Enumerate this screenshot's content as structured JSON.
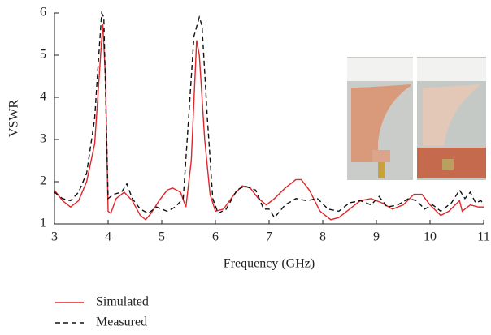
{
  "chart_data": {
    "type": "line",
    "xlabel": "Frequency (GHz)",
    "ylabel": "VSWR",
    "xlim": [
      3,
      11
    ],
    "xticks": [
      3,
      4,
      5,
      6,
      7,
      8,
      9,
      10,
      11
    ],
    "ylim": [
      1,
      6
    ],
    "yticks": [
      1,
      2,
      3,
      4,
      5,
      6
    ],
    "series": [
      {
        "name": "Simulated",
        "color": "#e0262b",
        "style": "solid",
        "x": [
          3.0,
          3.15,
          3.3,
          3.45,
          3.6,
          3.75,
          3.85,
          3.9,
          3.95,
          4.0,
          4.05,
          4.15,
          4.3,
          4.45,
          4.6,
          4.7,
          4.8,
          4.95,
          5.1,
          5.2,
          5.35,
          5.45,
          5.55,
          5.65,
          5.7,
          5.8,
          5.9,
          6.0,
          6.15,
          6.35,
          6.5,
          6.65,
          6.8,
          6.95,
          7.1,
          7.3,
          7.5,
          7.6,
          7.75,
          7.95,
          8.15,
          8.3,
          8.5,
          8.7,
          8.9,
          9.1,
          9.3,
          9.5,
          9.7,
          9.85,
          10.0,
          10.2,
          10.35,
          10.55,
          10.6,
          10.75,
          10.9,
          11.0
        ],
        "values": [
          1.8,
          1.55,
          1.4,
          1.55,
          2.0,
          2.9,
          4.8,
          5.75,
          4.5,
          1.3,
          1.25,
          1.6,
          1.75,
          1.55,
          1.2,
          1.1,
          1.25,
          1.55,
          1.8,
          1.85,
          1.75,
          1.4,
          2.5,
          5.35,
          5.0,
          3.0,
          1.7,
          1.3,
          1.35,
          1.7,
          1.9,
          1.85,
          1.6,
          1.45,
          1.6,
          1.85,
          2.05,
          2.05,
          1.8,
          1.3,
          1.1,
          1.15,
          1.35,
          1.55,
          1.6,
          1.5,
          1.35,
          1.45,
          1.7,
          1.7,
          1.45,
          1.2,
          1.3,
          1.55,
          1.3,
          1.45,
          1.4,
          1.4
        ]
      },
      {
        "name": "Measured",
        "color": "#111111",
        "style": "dashed",
        "x": [
          3.0,
          3.15,
          3.3,
          3.45,
          3.6,
          3.75,
          3.8,
          3.88,
          3.92,
          4.0,
          4.1,
          4.25,
          4.35,
          4.45,
          4.6,
          4.75,
          4.9,
          5.1,
          5.25,
          5.4,
          5.5,
          5.6,
          5.7,
          5.75,
          5.85,
          5.95,
          6.05,
          6.2,
          6.4,
          6.55,
          6.75,
          6.9,
          7.0,
          7.1,
          7.3,
          7.5,
          7.7,
          7.9,
          8.1,
          8.3,
          8.5,
          8.7,
          8.9,
          9.05,
          9.2,
          9.4,
          9.6,
          9.75,
          9.9,
          10.05,
          10.2,
          10.4,
          10.55,
          10.65,
          10.75,
          10.85,
          10.95,
          11.0
        ],
        "values": [
          1.75,
          1.6,
          1.55,
          1.75,
          2.2,
          3.5,
          4.5,
          6.0,
          5.9,
          1.6,
          1.7,
          1.75,
          1.95,
          1.6,
          1.35,
          1.25,
          1.4,
          1.3,
          1.4,
          1.6,
          3.5,
          5.45,
          5.9,
          5.7,
          3.5,
          1.6,
          1.25,
          1.35,
          1.8,
          1.9,
          1.8,
          1.35,
          1.35,
          1.15,
          1.45,
          1.6,
          1.55,
          1.6,
          1.35,
          1.3,
          1.5,
          1.55,
          1.45,
          1.65,
          1.4,
          1.45,
          1.6,
          1.55,
          1.35,
          1.45,
          1.3,
          1.5,
          1.8,
          1.6,
          1.75,
          1.5,
          1.55,
          1.45
        ]
      }
    ]
  }
}
